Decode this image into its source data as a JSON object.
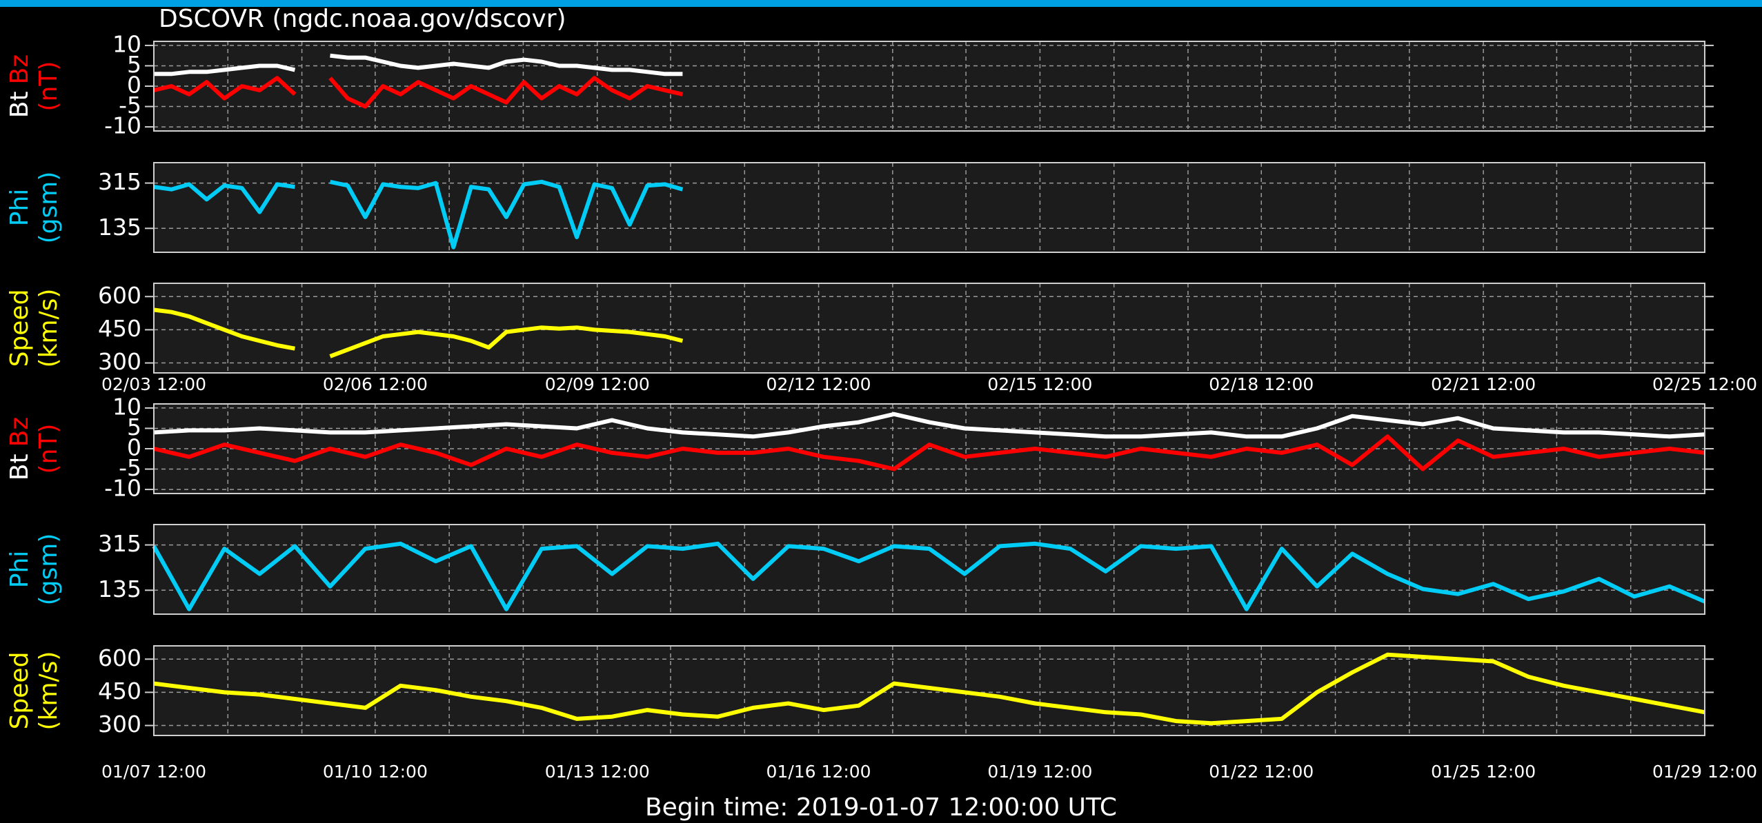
{
  "title": "DSCOVR (ngdc.noaa.gov/dscovr)",
  "footer": "Begin time: 2019-01-07 12:00:00 UTC",
  "chart_data": [
    {
      "type": "line",
      "xlim": [
        0,
        22
      ],
      "xticks": [
        {
          "value": 0,
          "label": "02/03 12:00"
        },
        {
          "value": 3.14,
          "label": "02/06 12:00"
        },
        {
          "value": 6.29,
          "label": "02/09 12:00"
        },
        {
          "value": 9.43,
          "label": "02/12 12:00"
        },
        {
          "value": 12.57,
          "label": "02/15 12:00"
        },
        {
          "value": 15.71,
          "label": "02/18 12:00"
        },
        {
          "value": 18.86,
          "label": "02/21 12:00"
        },
        {
          "value": 22,
          "label": "02/25 12:00"
        }
      ],
      "xgrid": [
        1.05,
        2.1,
        4.19,
        5.24,
        7.33,
        8.38,
        10.48,
        11.52,
        13.62,
        14.67,
        16.76,
        17.81,
        19.9,
        20.95
      ],
      "panels": [
        {
          "ylabel": [
            [
              {
                "text": "Bt",
                "color": "#ffffff"
              },
              {
                "text": "Bz",
                "color": "#ff0000"
              }
            ],
            [
              {
                "text": "(nT)",
                "color": "#ff0000"
              }
            ]
          ],
          "ylim": [
            -11,
            11
          ],
          "yticks": [
            10,
            5,
            0,
            -5,
            -10
          ],
          "x": [
            0,
            0.25,
            0.5,
            0.75,
            1,
            1.25,
            1.5,
            1.75,
            2,
            2.25,
            2.5,
            2.75,
            3,
            3.25,
            3.5,
            3.75,
            4,
            4.25,
            4.5,
            4.75,
            5,
            5.25,
            5.5,
            5.75,
            6,
            6.25,
            6.5,
            6.75,
            7,
            7.25,
            7.5
          ],
          "series": [
            {
              "color": "#ffffff",
              "values": [
                3,
                3,
                3.5,
                3.5,
                4,
                4.5,
                5,
                5,
                4,
                null,
                7.5,
                7,
                7,
                6,
                5,
                4.5,
                5,
                5.5,
                5,
                4.5,
                6,
                6.5,
                6,
                5,
                5,
                4.5,
                4,
                4,
                3.5,
                3,
                3
              ]
            },
            {
              "color": "#ff0000",
              "values": [
                -1,
                0,
                -2,
                1,
                -3,
                0,
                -1,
                2,
                -2,
                null,
                2,
                -3,
                -5,
                0,
                -2,
                1,
                -1,
                -3,
                0,
                -2,
                -4,
                1,
                -3,
                0,
                -2,
                2,
                -1,
                -3,
                0,
                -1,
                -2
              ]
            }
          ]
        },
        {
          "ylabel": [
            [
              {
                "text": "Phi",
                "color": "#00ccf5"
              }
            ],
            [
              {
                "text": "(gsm)",
                "color": "#00ccf5"
              }
            ]
          ],
          "ylim": [
            40,
            396
          ],
          "yticks": [
            315,
            135
          ],
          "x": [
            0,
            0.25,
            0.5,
            0.75,
            1,
            1.25,
            1.5,
            1.75,
            2,
            2.25,
            2.5,
            2.75,
            3,
            3.25,
            3.5,
            3.75,
            4,
            4.25,
            4.5,
            4.75,
            5,
            5.25,
            5.5,
            5.75,
            6,
            6.25,
            6.5,
            6.75,
            7,
            7.25,
            7.5
          ],
          "series": [
            {
              "color": "#00ccf5",
              "values": [
                300,
                290,
                310,
                250,
                305,
                295,
                200,
                310,
                300,
                null,
                320,
                305,
                180,
                310,
                300,
                295,
                315,
                60,
                300,
                290,
                180,
                310,
                320,
                300,
                100,
                310,
                295,
                150,
                305,
                310,
                290
              ]
            }
          ]
        },
        {
          "ylabel": [
            [
              {
                "text": "Speed",
                "color": "#ffff00"
              }
            ],
            [
              {
                "text": "(km/s)",
                "color": "#ffff00"
              }
            ]
          ],
          "ylim": [
            255,
            660
          ],
          "yticks": [
            600,
            450,
            300
          ],
          "x": [
            0,
            0.25,
            0.5,
            0.75,
            1,
            1.25,
            1.5,
            1.75,
            2,
            2.25,
            2.5,
            2.75,
            3,
            3.25,
            3.5,
            3.75,
            4,
            4.25,
            4.5,
            4.75,
            5,
            5.25,
            5.5,
            5.75,
            6,
            6.25,
            6.5,
            6.75,
            7,
            7.25,
            7.5
          ],
          "series": [
            {
              "color": "#ffff00",
              "values": [
                540,
                530,
                510,
                480,
                450,
                420,
                400,
                380,
                365,
                null,
                330,
                360,
                390,
                420,
                430,
                440,
                430,
                420,
                400,
                370,
                440,
                450,
                460,
                455,
                460,
                450,
                445,
                440,
                430,
                420,
                400
              ]
            }
          ]
        }
      ]
    },
    {
      "type": "line",
      "xlim": [
        0,
        22
      ],
      "xticks": [
        {
          "value": 0,
          "label": "01/07 12:00"
        },
        {
          "value": 3.14,
          "label": "01/10 12:00"
        },
        {
          "value": 6.29,
          "label": "01/13 12:00"
        },
        {
          "value": 9.43,
          "label": "01/16 12:00"
        },
        {
          "value": 12.57,
          "label": "01/19 12:00"
        },
        {
          "value": 15.71,
          "label": "01/22 12:00"
        },
        {
          "value": 18.86,
          "label": "01/25 12:00"
        },
        {
          "value": 22,
          "label": "01/29 12:00"
        }
      ],
      "xgrid": [
        1.05,
        2.1,
        4.19,
        5.24,
        7.33,
        8.38,
        10.48,
        11.52,
        13.62,
        14.67,
        16.76,
        17.81,
        19.9,
        20.95
      ],
      "panels": [
        {
          "ylabel": [
            [
              {
                "text": "Bt",
                "color": "#ffffff"
              },
              {
                "text": "Bz",
                "color": "#ff0000"
              }
            ],
            [
              {
                "text": "(nT)",
                "color": "#ff0000"
              }
            ]
          ],
          "ylim": [
            -11,
            11
          ],
          "yticks": [
            10,
            5,
            0,
            -5,
            -10
          ],
          "x": [
            0,
            0.5,
            1,
            1.5,
            2,
            2.5,
            3,
            3.5,
            4,
            4.5,
            5,
            5.5,
            6,
            6.5,
            7,
            7.5,
            8,
            8.5,
            9,
            9.5,
            10,
            10.5,
            11,
            11.5,
            12,
            12.5,
            13,
            13.5,
            14,
            14.5,
            15,
            15.5,
            16,
            16.5,
            17,
            17.5,
            18,
            18.5,
            19,
            19.5,
            20,
            20.5,
            21,
            21.5,
            22
          ],
          "series": [
            {
              "color": "#ffffff",
              "values": [
                4,
                4.5,
                4.5,
                5,
                4.5,
                4,
                4,
                4.5,
                5,
                5.5,
                6,
                5.5,
                5,
                7,
                5,
                4,
                3.5,
                3,
                4,
                5.5,
                6.5,
                8.5,
                6.5,
                5,
                4.5,
                4,
                3.5,
                3,
                3,
                3.5,
                4,
                3,
                3,
                5,
                8,
                7,
                6,
                7.5,
                5,
                4.5,
                4,
                4,
                3.5,
                3,
                3.5
              ]
            },
            {
              "color": "#ff0000",
              "values": [
                0,
                -2,
                1,
                -1,
                -3,
                0,
                -2,
                1,
                -1,
                -4,
                0,
                -2,
                1,
                -1,
                -2,
                0,
                -1,
                -1,
                0,
                -2,
                -3,
                -5,
                1,
                -2,
                -1,
                0,
                -1,
                -2,
                0,
                -1,
                -2,
                0,
                -1,
                1,
                -4,
                3,
                -5,
                2,
                -2,
                -1,
                0,
                -2,
                -1,
                0,
                -1
              ]
            }
          ]
        },
        {
          "ylabel": [
            [
              {
                "text": "Phi",
                "color": "#00ccf5"
              }
            ],
            [
              {
                "text": "(gsm)",
                "color": "#00ccf5"
              }
            ]
          ],
          "ylim": [
            40,
            396
          ],
          "yticks": [
            315,
            135
          ],
          "x": [
            0,
            0.5,
            1,
            1.5,
            2,
            2.5,
            3,
            3.5,
            4,
            4.5,
            5,
            5.5,
            6,
            6.5,
            7,
            7.5,
            8,
            8.5,
            9,
            9.5,
            10,
            10.5,
            11,
            11.5,
            12,
            12.5,
            13,
            13.5,
            14,
            14.5,
            15,
            15.5,
            16,
            16.5,
            17,
            17.5,
            18,
            18.5,
            19,
            19.5,
            20,
            20.5,
            21,
            21.5,
            22
          ],
          "series": [
            {
              "color": "#00ccf5",
              "values": [
                310,
                60,
                300,
                200,
                310,
                150,
                300,
                320,
                250,
                310,
                60,
                300,
                310,
                200,
                310,
                300,
                320,
                180,
                310,
                300,
                250,
                310,
                300,
                200,
                310,
                320,
                300,
                210,
                310,
                300,
                310,
                60,
                300,
                150,
                280,
                200,
                140,
                120,
                160,
                100,
                130,
                180,
                110,
                150,
                90
              ]
            }
          ]
        },
        {
          "ylabel": [
            [
              {
                "text": "Speed",
                "color": "#ffff00"
              }
            ],
            [
              {
                "text": "(km/s)",
                "color": "#ffff00"
              }
            ]
          ],
          "ylim": [
            255,
            660
          ],
          "yticks": [
            600,
            450,
            300
          ],
          "x": [
            0,
            0.5,
            1,
            1.5,
            2,
            2.5,
            3,
            3.5,
            4,
            4.5,
            5,
            5.5,
            6,
            6.5,
            7,
            7.5,
            8,
            8.5,
            9,
            9.5,
            10,
            10.5,
            11,
            11.5,
            12,
            12.5,
            13,
            13.5,
            14,
            14.5,
            15,
            15.5,
            16,
            16.5,
            17,
            17.5,
            18,
            18.5,
            19,
            19.5,
            20,
            20.5,
            21,
            21.5,
            22
          ],
          "series": [
            {
              "color": "#ffff00",
              "values": [
                490,
                470,
                450,
                440,
                420,
                400,
                380,
                480,
                460,
                430,
                410,
                380,
                330,
                340,
                370,
                350,
                340,
                380,
                400,
                370,
                390,
                490,
                470,
                450,
                430,
                400,
                380,
                360,
                350,
                320,
                310,
                320,
                330,
                450,
                540,
                620,
                610,
                600,
                590,
                520,
                480,
                450,
                420,
                390,
                360
              ]
            }
          ]
        }
      ]
    }
  ]
}
